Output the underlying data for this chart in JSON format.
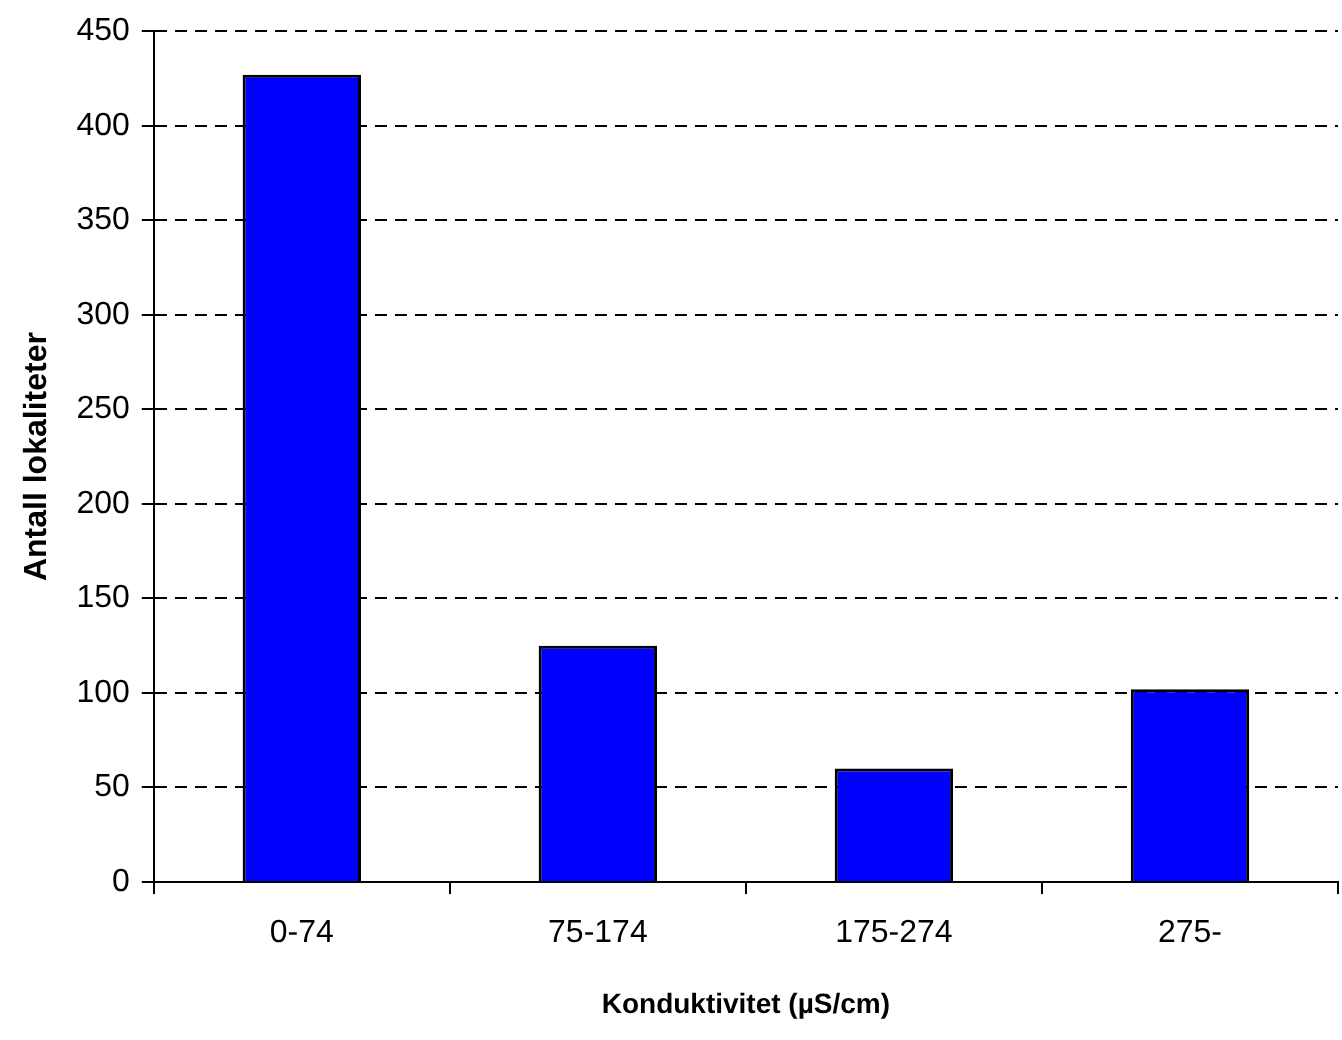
{
  "chart_data": {
    "type": "bar",
    "xlabel": "Konduktivitet (µS/cm)",
    "ylabel": "Antall lokaliteter",
    "categories": [
      "0-74",
      "75-174",
      "175-274",
      "275-"
    ],
    "values": [
      427,
      125,
      60,
      102
    ],
    "color": "#0000ff",
    "ylim": [
      0,
      450
    ],
    "yticks": [
      0,
      50,
      100,
      150,
      200,
      250,
      300,
      350,
      400,
      450
    ],
    "grid": "y",
    "line_style": "dashed"
  }
}
